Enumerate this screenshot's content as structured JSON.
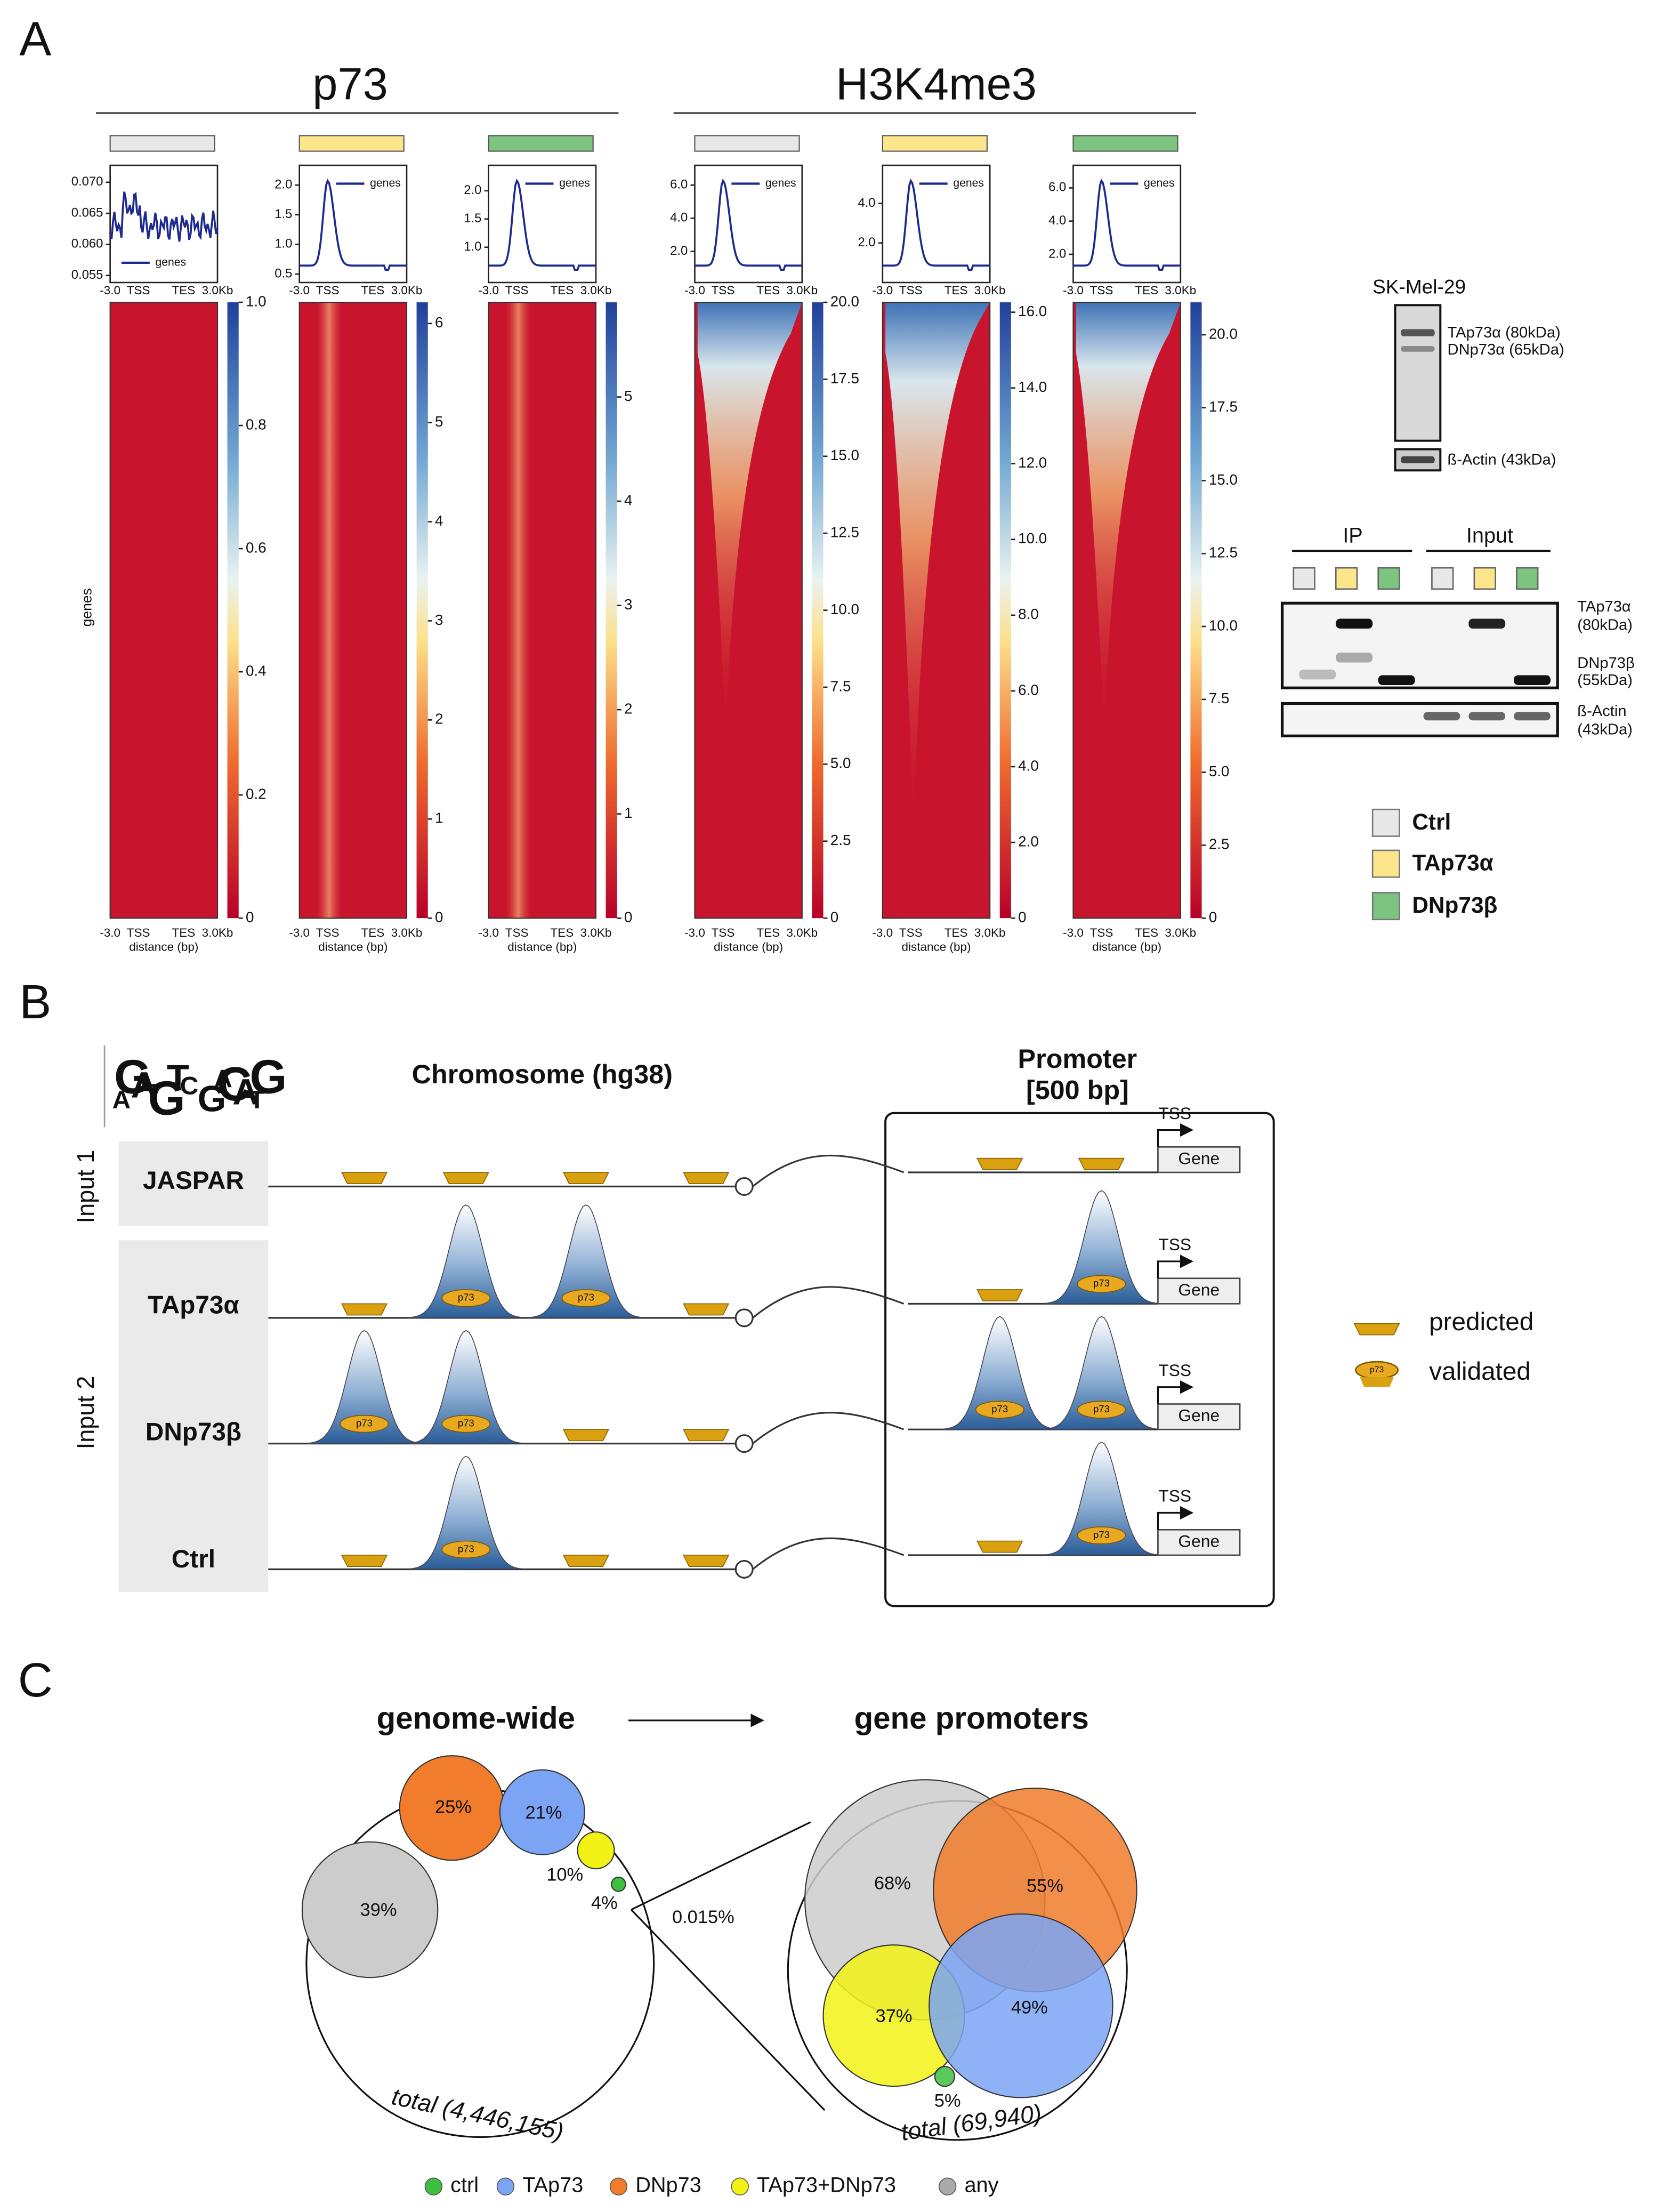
{
  "panel_a": {
    "label": "A",
    "groups": [
      "p73",
      "H3K4me3"
    ],
    "profile_legend": "genes",
    "x_ticks": [
      "-3.0",
      "TSS",
      "TES",
      "3.0Kb"
    ],
    "x_label": "distance (bp)",
    "y_label": "genes",
    "columns": [
      {
        "profile_ticks": [
          "0.070",
          "0.065",
          "0.060",
          "0.055"
        ],
        "colorbar_ticks": [
          "0",
          "0.2",
          "0.4",
          "0.6",
          "0.8",
          "1.0"
        ]
      },
      {
        "profile_ticks": [
          "2.0",
          "1.5",
          "1.0",
          "0.5"
        ],
        "colorbar_ticks": [
          "0",
          "1",
          "2",
          "3",
          "4",
          "5",
          "6"
        ]
      },
      {
        "profile_ticks": [
          "2.0",
          "1.5",
          "1.0"
        ],
        "colorbar_ticks": [
          "0",
          "1",
          "2",
          "3",
          "4",
          "5"
        ]
      },
      {
        "profile_ticks": [
          "6.0",
          "4.0",
          "2.0"
        ],
        "colorbar_ticks": [
          "0",
          "2.5",
          "5.0",
          "7.5",
          "10.0",
          "12.5",
          "15.0",
          "17.5",
          "20.0"
        ]
      },
      {
        "profile_ticks": [
          "4.0",
          "2.0"
        ],
        "colorbar_ticks": [
          "0",
          "2.0",
          "4.0",
          "6.0",
          "8.0",
          "10.0",
          "12.0",
          "14.0",
          "16.0"
        ]
      },
      {
        "profile_ticks": [
          "6.0",
          "4.0",
          "2.0"
        ],
        "colorbar_ticks": [
          "0",
          "2.5",
          "5.0",
          "7.5",
          "10.0",
          "12.5",
          "15.0",
          "17.5",
          "20.0"
        ]
      }
    ],
    "blot_1": {
      "title": "SK-Mel-29",
      "bands": [
        "TAp73α (80kDa)",
        "DNp73α (65kDa)"
      ],
      "control": "ß-Actin (43kDa)"
    },
    "blot_2": {
      "lanes": [
        "IP",
        "Input"
      ],
      "bands": [
        [
          "TAp73α",
          "(80kDa)"
        ],
        [
          "DNp73β",
          "(55kDa)"
        ],
        [
          "ß-Actin",
          "(43kDa)"
        ]
      ]
    },
    "legend": [
      "Ctrl",
      "TAp73α",
      "DNp73β"
    ]
  },
  "panel_b": {
    "label": "B",
    "chromosome": "Chromosome (hg38)",
    "promoter": [
      "Promoter",
      "[500 bp]"
    ],
    "inputs": [
      "Input 1",
      "Input 2"
    ],
    "rows": [
      "JASPAR",
      "TAp73α",
      "DNp73β",
      "Ctrl"
    ],
    "tss": "TSS",
    "gene": "Gene",
    "peak": "p73",
    "legend": [
      "predicted",
      "validated"
    ]
  },
  "panel_c": {
    "label": "C",
    "left_title": "genome-wide",
    "right_title": "gene promoters",
    "left": {
      "dnp73": "25%",
      "tap73": "21%",
      "both": "10%",
      "ctrl": "4%",
      "any": "39%",
      "total": "total (4,446,155)"
    },
    "fraction": "0.015%",
    "right": {
      "any": "68%",
      "dnp73": "55%",
      "both": "37%",
      "tap73": "49%",
      "ctrl": "5%",
      "total": "total (69,940)"
    },
    "legend": [
      "ctrl",
      "TAp73",
      "DNp73",
      "TAp73+DNp73",
      "any"
    ]
  }
}
